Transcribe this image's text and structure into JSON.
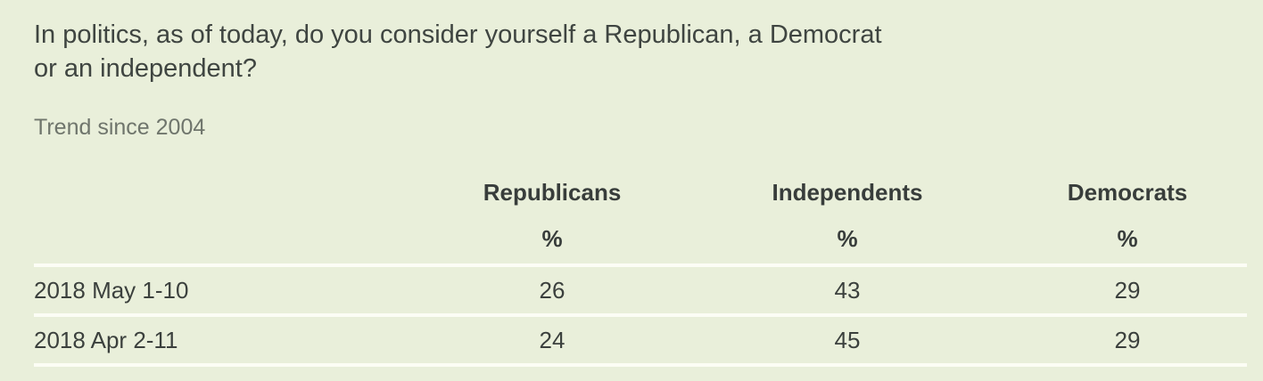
{
  "question": {
    "line1": "In politics, as of today, do you consider yourself a Republican, a Democrat",
    "line2": "or an independent?"
  },
  "subtitle": "Trend since 2004",
  "table": {
    "columns": [
      "Republicans",
      "Independents",
      "Democrats"
    ],
    "unit": "%",
    "rows": [
      {
        "label": "2018 May 1-10",
        "values": [
          26,
          43,
          29
        ]
      },
      {
        "label": "2018 Apr 2-11",
        "values": [
          24,
          45,
          29
        ]
      }
    ]
  },
  "colors": {
    "background": "#e9efda",
    "text": "#3f4541",
    "muted": "#6f756c",
    "divider": "#fcfdf5"
  },
  "chart_data": {
    "type": "table",
    "title": "In politics, as of today, do you consider yourself a Republican, a Democrat or an independent?",
    "subtitle": "Trend since 2004",
    "columns": [
      "",
      "Republicans",
      "Independents",
      "Democrats"
    ],
    "unit_row": [
      "",
      "%",
      "%",
      "%"
    ],
    "rows": [
      [
        "2018 May 1-10",
        26,
        43,
        29
      ],
      [
        "2018 Apr 2-11",
        24,
        45,
        29
      ]
    ]
  }
}
